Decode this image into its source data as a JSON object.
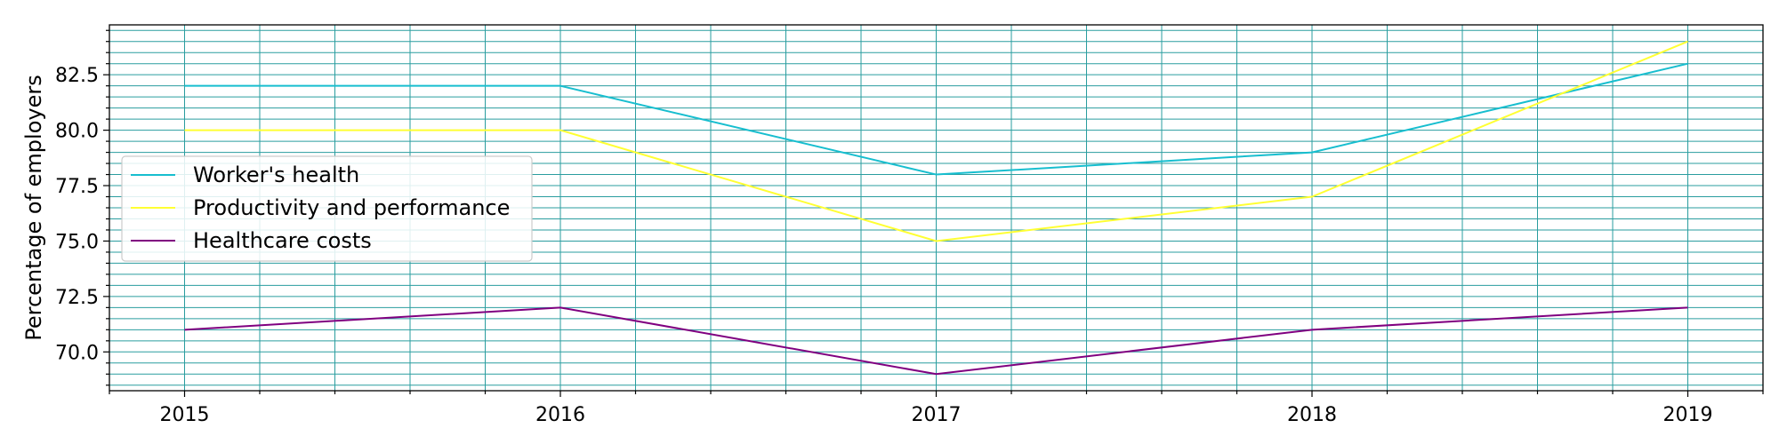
{
  "chart_data": {
    "type": "line",
    "title": "",
    "xlabel": "",
    "ylabel": "Percentage of employers",
    "x": [
      2015,
      2016,
      2017,
      2018,
      2019
    ],
    "x_tick_labels": [
      "2015",
      "2016",
      "2017",
      "2018",
      "2019"
    ],
    "y_tick_labels": [
      "70.0",
      "72.5",
      "75.0",
      "77.5",
      "80.0",
      "82.5"
    ],
    "y_ticks": [
      70.0,
      72.5,
      75.0,
      77.5,
      80.0,
      82.5
    ],
    "xlim": [
      2014.8,
      2019.2
    ],
    "ylim": [
      68.25,
      84.75
    ],
    "grid": true,
    "legend_position": "center-left",
    "series": [
      {
        "name": "Worker's health",
        "color": "#17becf",
        "values": [
          82,
          82,
          78,
          79,
          83
        ]
      },
      {
        "name": "Productivity and performance",
        "color": "#ffff33",
        "values": [
          80,
          80,
          75,
          77,
          84
        ]
      },
      {
        "name": "Healthcare costs",
        "color": "#800080",
        "values": [
          71,
          72,
          69,
          71,
          72
        ]
      }
    ],
    "grid_color": "#2a9d9f"
  }
}
